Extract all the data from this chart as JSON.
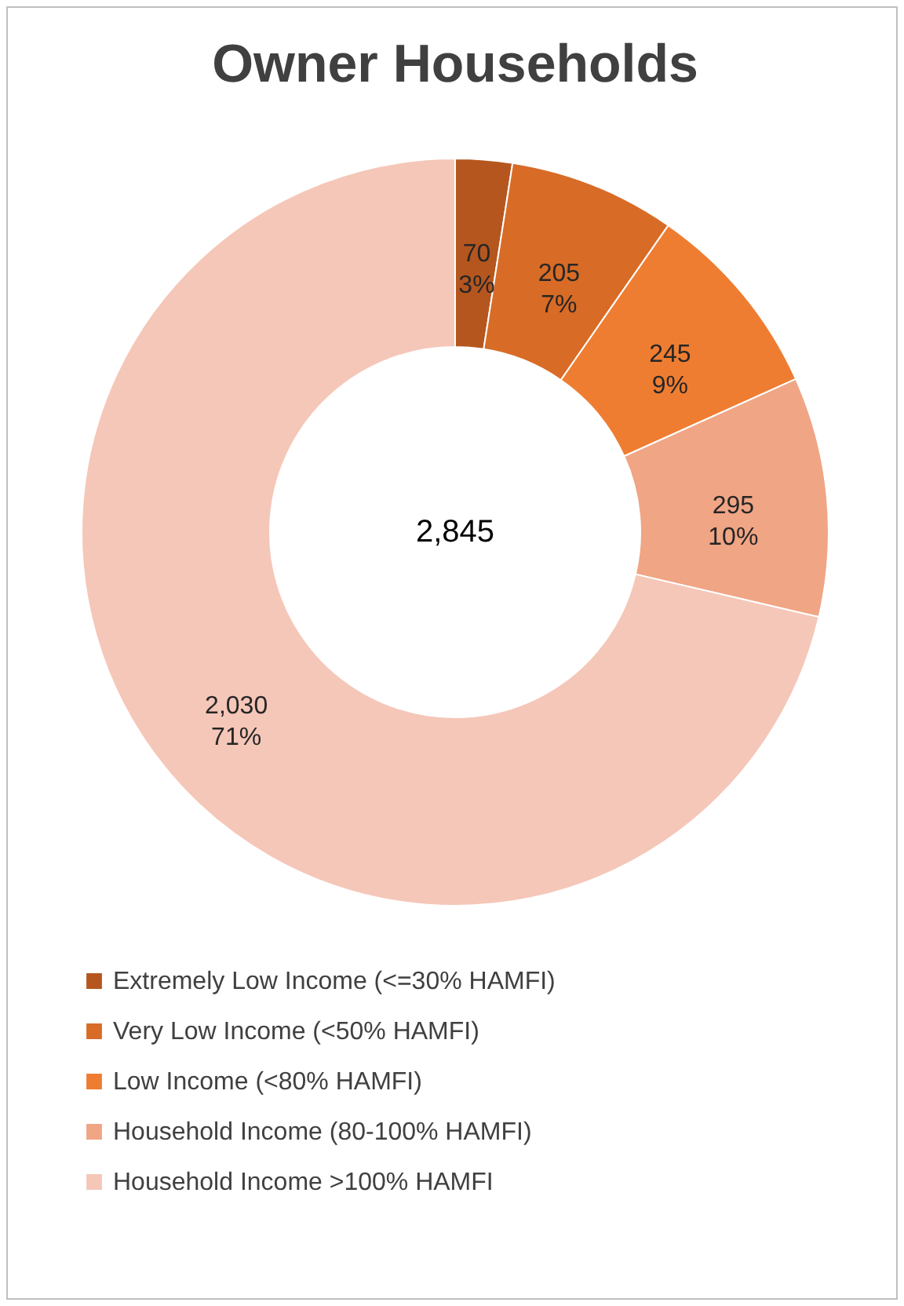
{
  "chart_data": {
    "type": "donut",
    "title": "Owner Households",
    "categories": [
      "Extremely Low Income (<=30% HAMFI)",
      "Very Low Income (<50% HAMFI)",
      "Low Income (<80% HAMFI)",
      "Household Income (80-100% HAMFI)",
      "Household Income >100% HAMFI"
    ],
    "values": [
      70,
      205,
      245,
      295,
      2030
    ],
    "colors": [
      "#b5561f",
      "#d86b26",
      "#ee7d32",
      "#f0a585",
      "#f5c7b8"
    ],
    "value_labels": [
      "70\n3%",
      "205\n7%",
      "245\n9%",
      "295\n10%",
      "2,030\n71%"
    ],
    "annotations": [
      "2,845"
    ],
    "legend": "bottom"
  }
}
